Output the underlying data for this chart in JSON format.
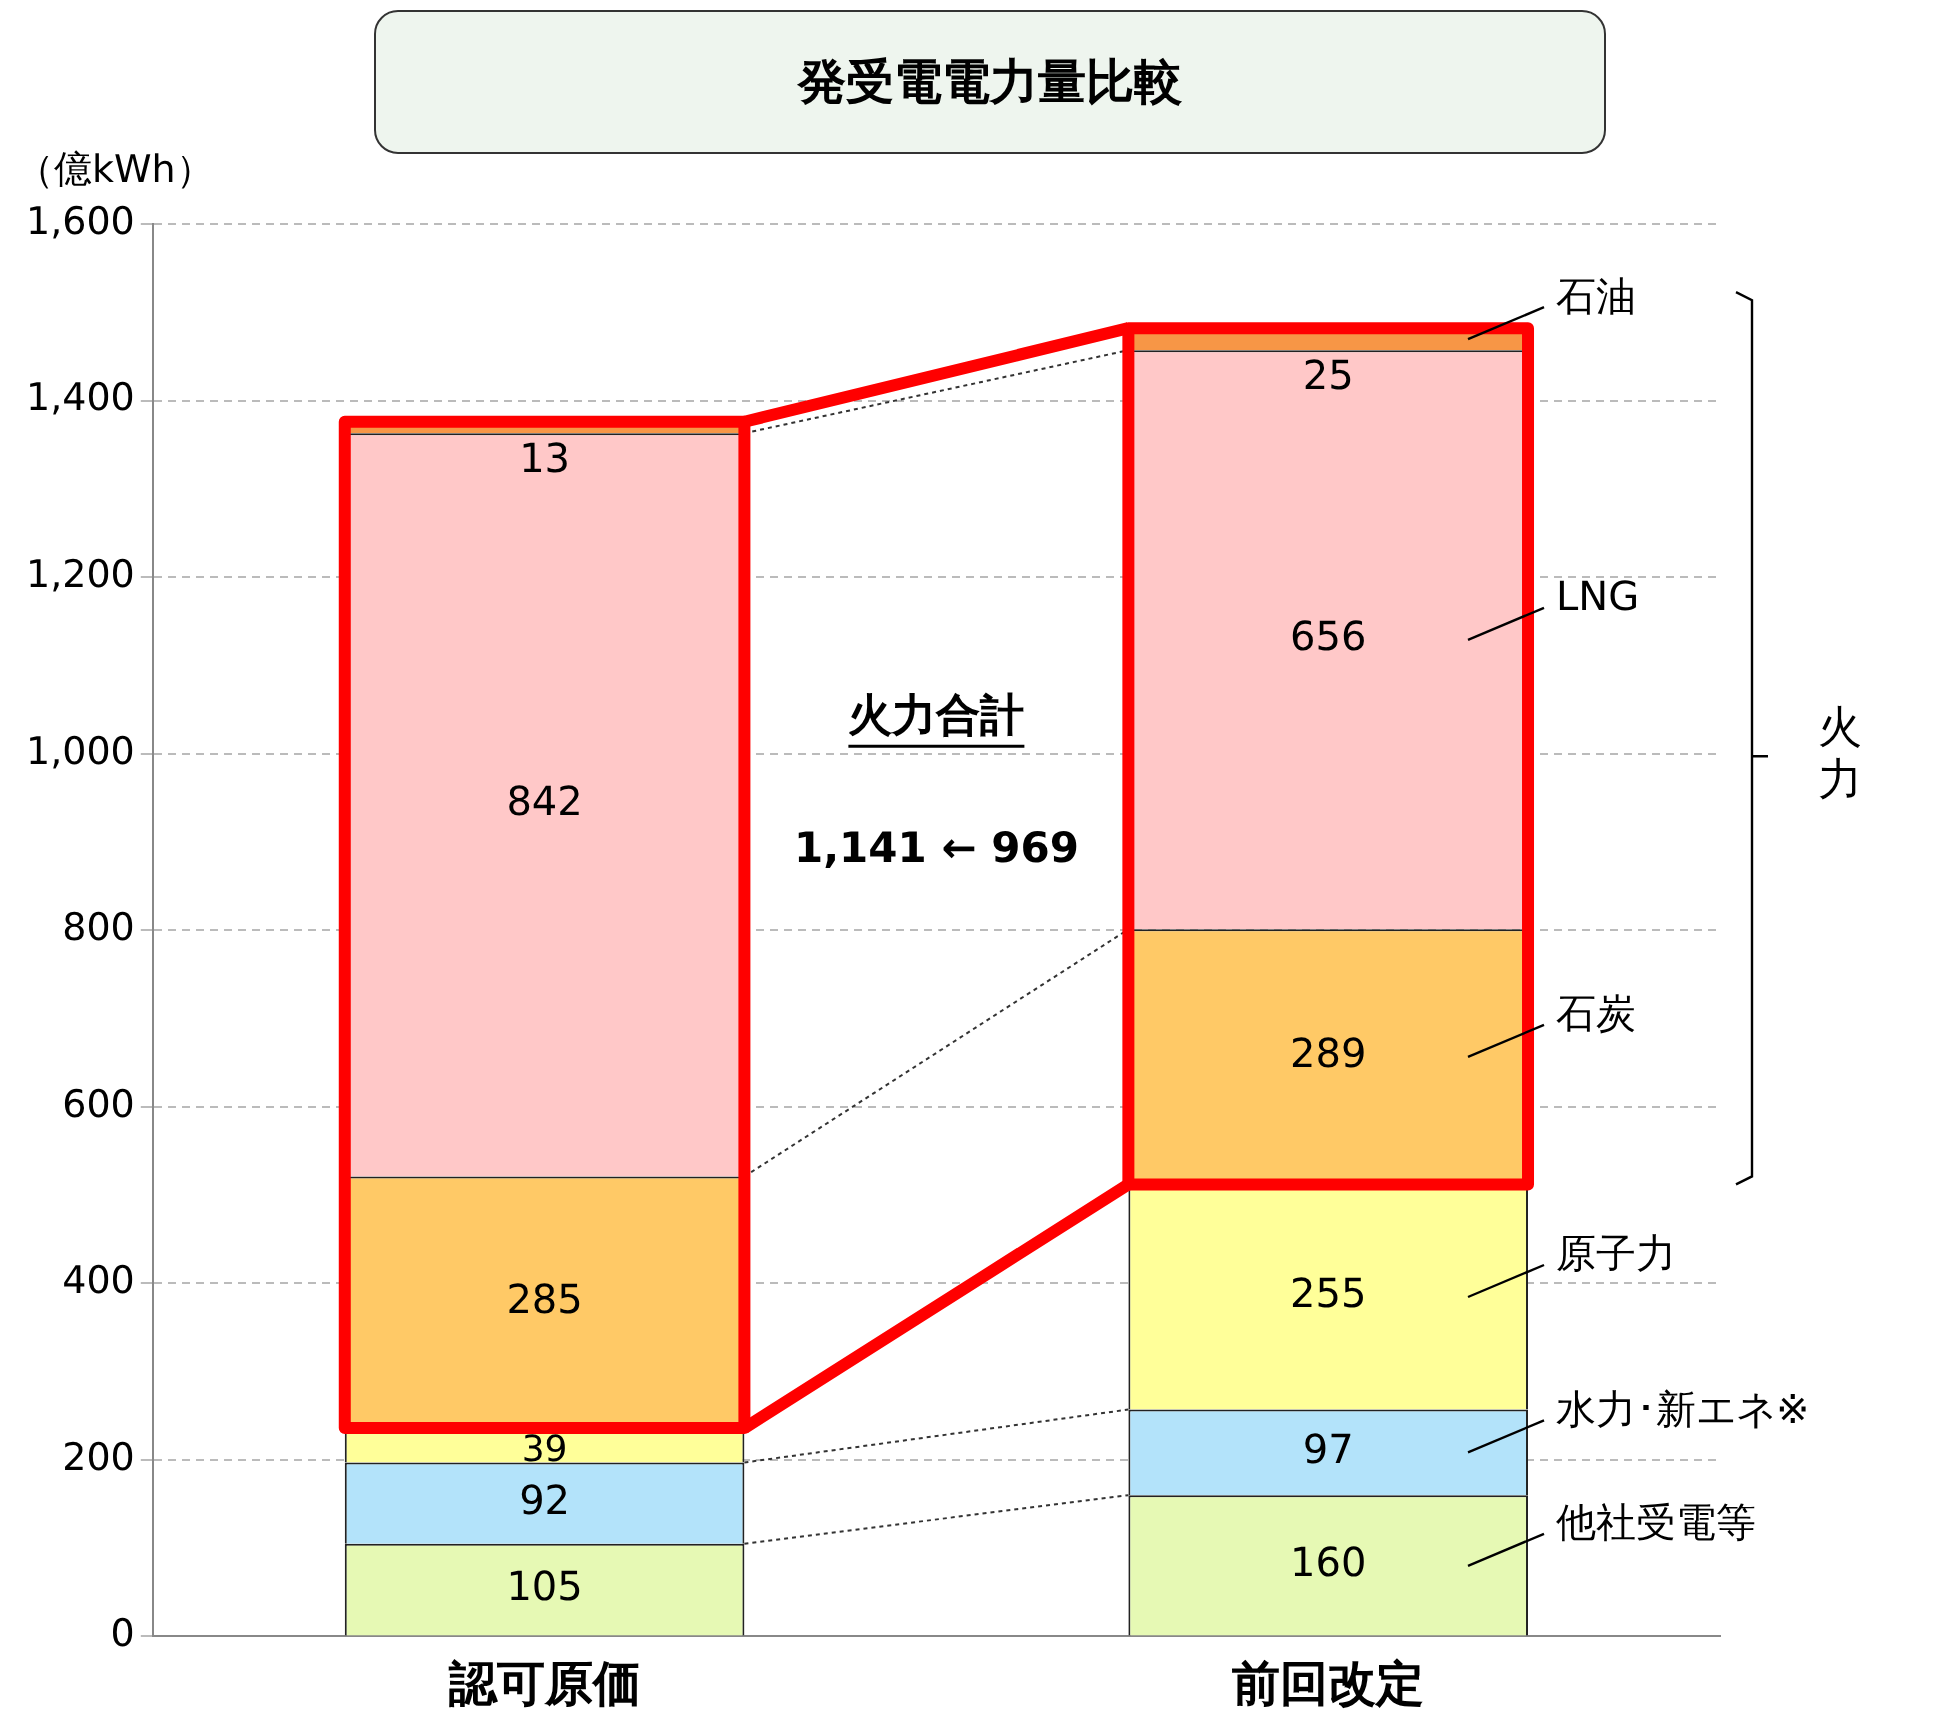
{
  "chart_data": {
    "type": "bar",
    "stacked": true,
    "title": "発受電電力量比較",
    "ylabel": "（億kWh）",
    "categories": [
      "認可原価",
      "前回改定"
    ],
    "series": [
      {
        "name": "他社受電等",
        "color": "#e6f9b4",
        "values": [
          105,
          160
        ]
      },
      {
        "name": "水力･新エネ※",
        "color": "#b3e3fa",
        "values": [
          92,
          97
        ]
      },
      {
        "name": "原子力",
        "color": "#ffff99",
        "values": [
          39,
          255
        ]
      },
      {
        "name": "石炭",
        "color": "#ffc966",
        "values": [
          285,
          289
        ]
      },
      {
        "name": "LNG",
        "color": "#ffc8c8",
        "values": [
          842,
          656
        ]
      },
      {
        "name": "石油",
        "color": "#f79646",
        "values": [
          13,
          25
        ]
      }
    ],
    "ylim": [
      0,
      1600
    ],
    "yticks": [
      0,
      {
        "value": 200,
        "label": "200"
      },
      {
        "value": 400,
        "label": "400"
      },
      {
        "value": 600,
        "label": "600"
      },
      {
        "value": 800,
        "label": "800"
      },
      {
        "value": 1000,
        "label": "1,000"
      },
      {
        "value": 1200,
        "label": "1,200"
      },
      {
        "value": 1400,
        "label": "1,400"
      },
      {
        "value": 1600,
        "label": "1,600"
      }
    ],
    "grid": "y",
    "legend": false,
    "data_labels": true,
    "annotations": [
      "火力合計",
      "1,141 ← 969",
      "火力"
    ]
  }
}
